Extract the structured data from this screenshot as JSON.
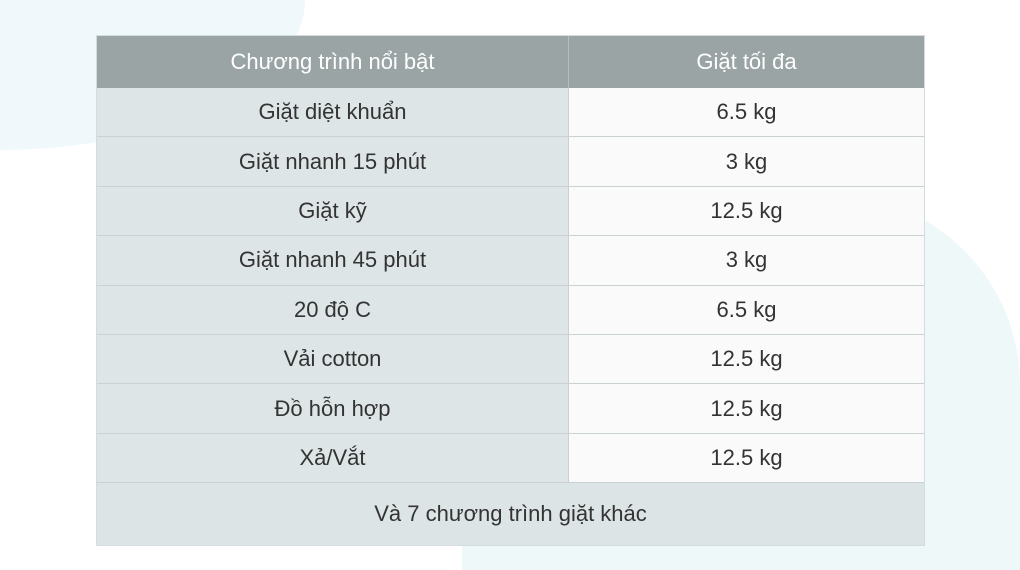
{
  "table": {
    "headers": [
      "Chương trình nổi bật",
      "Giặt tối đa"
    ],
    "rows": [
      {
        "program": "Giặt diệt khuẩn",
        "max": "6.5 kg"
      },
      {
        "program": "Giặt nhanh 15 phút",
        "max": "3 kg"
      },
      {
        "program": "Giặt kỹ",
        "max": "12.5 kg"
      },
      {
        "program": "Giặt nhanh 45 phút",
        "max": "3 kg"
      },
      {
        "program": "20 độ C",
        "max": "6.5 kg"
      },
      {
        "program": "Vải cotton",
        "max": "12.5 kg"
      },
      {
        "program": "Đồ hỗn hợp",
        "max": "12.5 kg"
      },
      {
        "program": "Xả/Vắt",
        "max": "12.5 kg"
      }
    ],
    "footer": "Và 7 chương trình giặt khác"
  },
  "colors": {
    "header": "#9aa4a5",
    "left_cell": "#dde5e6",
    "right_cell": "#fafafa"
  }
}
